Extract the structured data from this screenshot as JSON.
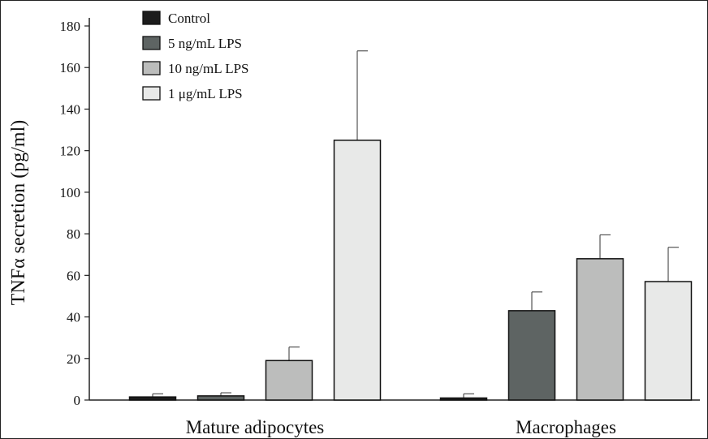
{
  "chart_data": {
    "type": "bar",
    "ylabel": "TNFα secretion (pg/ml)",
    "ylim": [
      0,
      180
    ],
    "yticks": [
      0,
      20,
      40,
      60,
      80,
      100,
      120,
      140,
      160,
      180
    ],
    "categories": [
      "Mature adipocytes",
      "Macrophages"
    ],
    "legend_position": "top-left",
    "series": [
      {
        "name": "Control",
        "color": "#1c1c1c",
        "values": [
          1.5,
          1
        ],
        "errors": [
          1.5,
          2
        ]
      },
      {
        "name": "5 ng/mL LPS",
        "color": "#5e6463",
        "values": [
          2,
          43
        ],
        "errors": [
          1.5,
          9
        ]
      },
      {
        "name": "10 ng/mL LPS",
        "color": "#bcbdbc",
        "values": [
          19,
          68
        ],
        "errors": [
          6.5,
          11.5
        ]
      },
      {
        "name": "1 μg/mL LPS",
        "color": "#e8e9e8",
        "values": [
          125,
          57
        ],
        "errors": [
          43,
          16.5
        ]
      }
    ]
  }
}
